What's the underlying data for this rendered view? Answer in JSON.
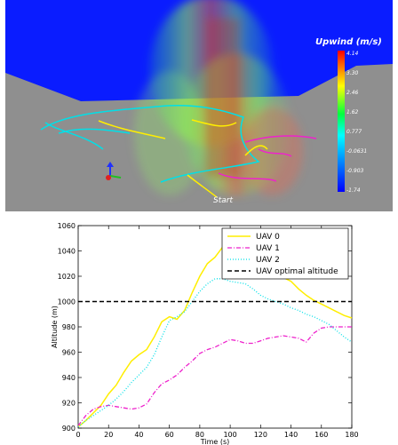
{
  "scene": {
    "colorbar_title": "Upwind (m/s)",
    "colorbar_ticks": [
      "4.14",
      "3.30",
      "2.46",
      "1.62",
      "0.777",
      "-0.0631",
      "-0.903",
      "-1.74"
    ],
    "start_label": "Start",
    "colors": {
      "sky": "#0a1cff",
      "ground": "#8f8f8f",
      "uav0": "#ffee00",
      "uav1": "#ee22cc",
      "uav2": "#00e0e8"
    }
  },
  "chart_data": {
    "type": "line",
    "xlabel": "Time (s)",
    "ylabel": "Altitude (m)",
    "xlim": [
      0,
      180
    ],
    "ylim": [
      900,
      1060
    ],
    "xticks": [
      0,
      20,
      40,
      60,
      80,
      100,
      120,
      140,
      160,
      180
    ],
    "yticks": [
      900,
      920,
      940,
      960,
      980,
      1000,
      1020,
      1040,
      1060
    ],
    "legend_position": "top-right",
    "grid": false,
    "series": [
      {
        "name": "UAV 0",
        "style": "solid",
        "color": "#ffee00",
        "x": [
          0,
          5,
          10,
          15,
          20,
          25,
          30,
          35,
          40,
          45,
          50,
          55,
          60,
          65,
          70,
          75,
          80,
          85,
          90,
          95,
          100,
          105,
          110,
          115,
          120,
          125,
          130,
          135,
          140,
          145,
          150,
          155,
          160,
          165,
          170,
          175,
          180
        ],
        "y": [
          901,
          906,
          912,
          918,
          927,
          934,
          944,
          953,
          958,
          962,
          972,
          984,
          988,
          986,
          993,
          1007,
          1020,
          1030,
          1035,
          1043,
          1040,
          1033,
          1031,
          1030,
          1027,
          1024,
          1021,
          1019,
          1016,
          1010,
          1005,
          1001,
          998,
          995,
          992,
          989,
          987
        ]
      },
      {
        "name": "UAV 1",
        "style": "dashdot",
        "color": "#ee22cc",
        "x": [
          0,
          5,
          10,
          15,
          20,
          25,
          30,
          35,
          40,
          45,
          50,
          55,
          60,
          65,
          70,
          75,
          80,
          85,
          90,
          95,
          100,
          105,
          110,
          115,
          120,
          125,
          130,
          135,
          140,
          145,
          150,
          155,
          160,
          165,
          170,
          175,
          180
        ],
        "y": [
          902,
          910,
          915,
          917,
          918,
          917,
          916,
          915,
          916,
          919,
          928,
          935,
          938,
          942,
          948,
          953,
          959,
          962,
          964,
          967,
          970,
          969,
          967,
          967,
          969,
          971,
          972,
          973,
          972,
          971,
          968,
          975,
          979,
          980,
          980,
          980,
          980
        ]
      },
      {
        "name": "UAV 2",
        "style": "dotted",
        "color": "#00e0e8",
        "x": [
          0,
          5,
          10,
          15,
          20,
          25,
          30,
          35,
          40,
          45,
          50,
          55,
          60,
          65,
          70,
          75,
          80,
          85,
          90,
          95,
          100,
          105,
          110,
          115,
          120,
          125,
          130,
          135,
          140,
          145,
          150,
          155,
          160,
          165,
          170,
          175,
          180
        ],
        "y": [
          901,
          906,
          910,
          914,
          918,
          923,
          929,
          936,
          942,
          948,
          958,
          972,
          985,
          988,
          992,
          1000,
          1008,
          1014,
          1018,
          1018,
          1016,
          1015,
          1014,
          1010,
          1005,
          1002,
          1000,
          998,
          995,
          993,
          990,
          988,
          985,
          982,
          977,
          972,
          968
        ]
      },
      {
        "name": "UAV optimal altitude",
        "style": "dashed",
        "color": "#000000",
        "x": [
          0,
          180
        ],
        "y": [
          1000,
          1000
        ]
      }
    ]
  }
}
